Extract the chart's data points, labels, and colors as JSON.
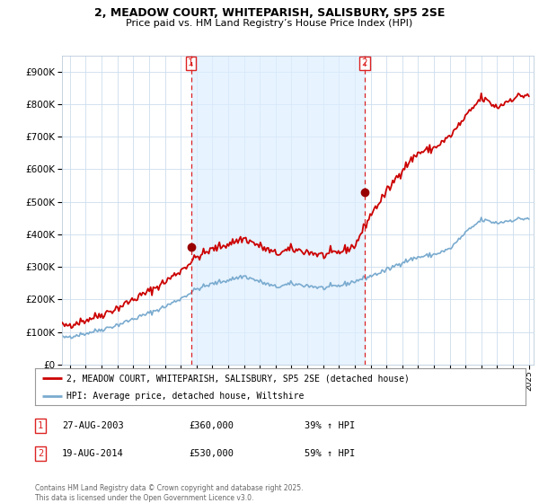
{
  "title": "2, MEADOW COURT, WHITEPARISH, SALISBURY, SP5 2SE",
  "subtitle": "Price paid vs. HM Land Registry’s House Price Index (HPI)",
  "ylim": [
    0,
    950000
  ],
  "yticks": [
    0,
    100000,
    200000,
    300000,
    400000,
    500000,
    600000,
    700000,
    800000,
    900000
  ],
  "ytick_labels": [
    "£0",
    "£100K",
    "£200K",
    "£300K",
    "£400K",
    "£500K",
    "£600K",
    "£700K",
    "£800K",
    "£900K"
  ],
  "legend_line1": "2, MEADOW COURT, WHITEPARISH, SALISBURY, SP5 2SE (detached house)",
  "legend_line2": "HPI: Average price, detached house, Wiltshire",
  "sale1_date": "27-AUG-2003",
  "sale1_price": 360000,
  "sale1_hpi": "39% ↑ HPI",
  "sale2_date": "19-AUG-2014",
  "sale2_price": 530000,
  "sale2_hpi": "59% ↑ HPI",
  "footer": "Contains HM Land Registry data © Crown copyright and database right 2025.\nThis data is licensed under the Open Government Licence v3.0.",
  "red_color": "#cc0000",
  "blue_color": "#7aabcf",
  "shade_color": "#ddeeff",
  "sale_marker_color": "#990000",
  "vline_color": "#dd2222",
  "bg_color": "#ffffff",
  "grid_color": "#ccddee",
  "sale1_year": 2003.65,
  "sale2_year": 2014.63,
  "xlim_left": 1995.5,
  "xlim_right": 2025.3
}
